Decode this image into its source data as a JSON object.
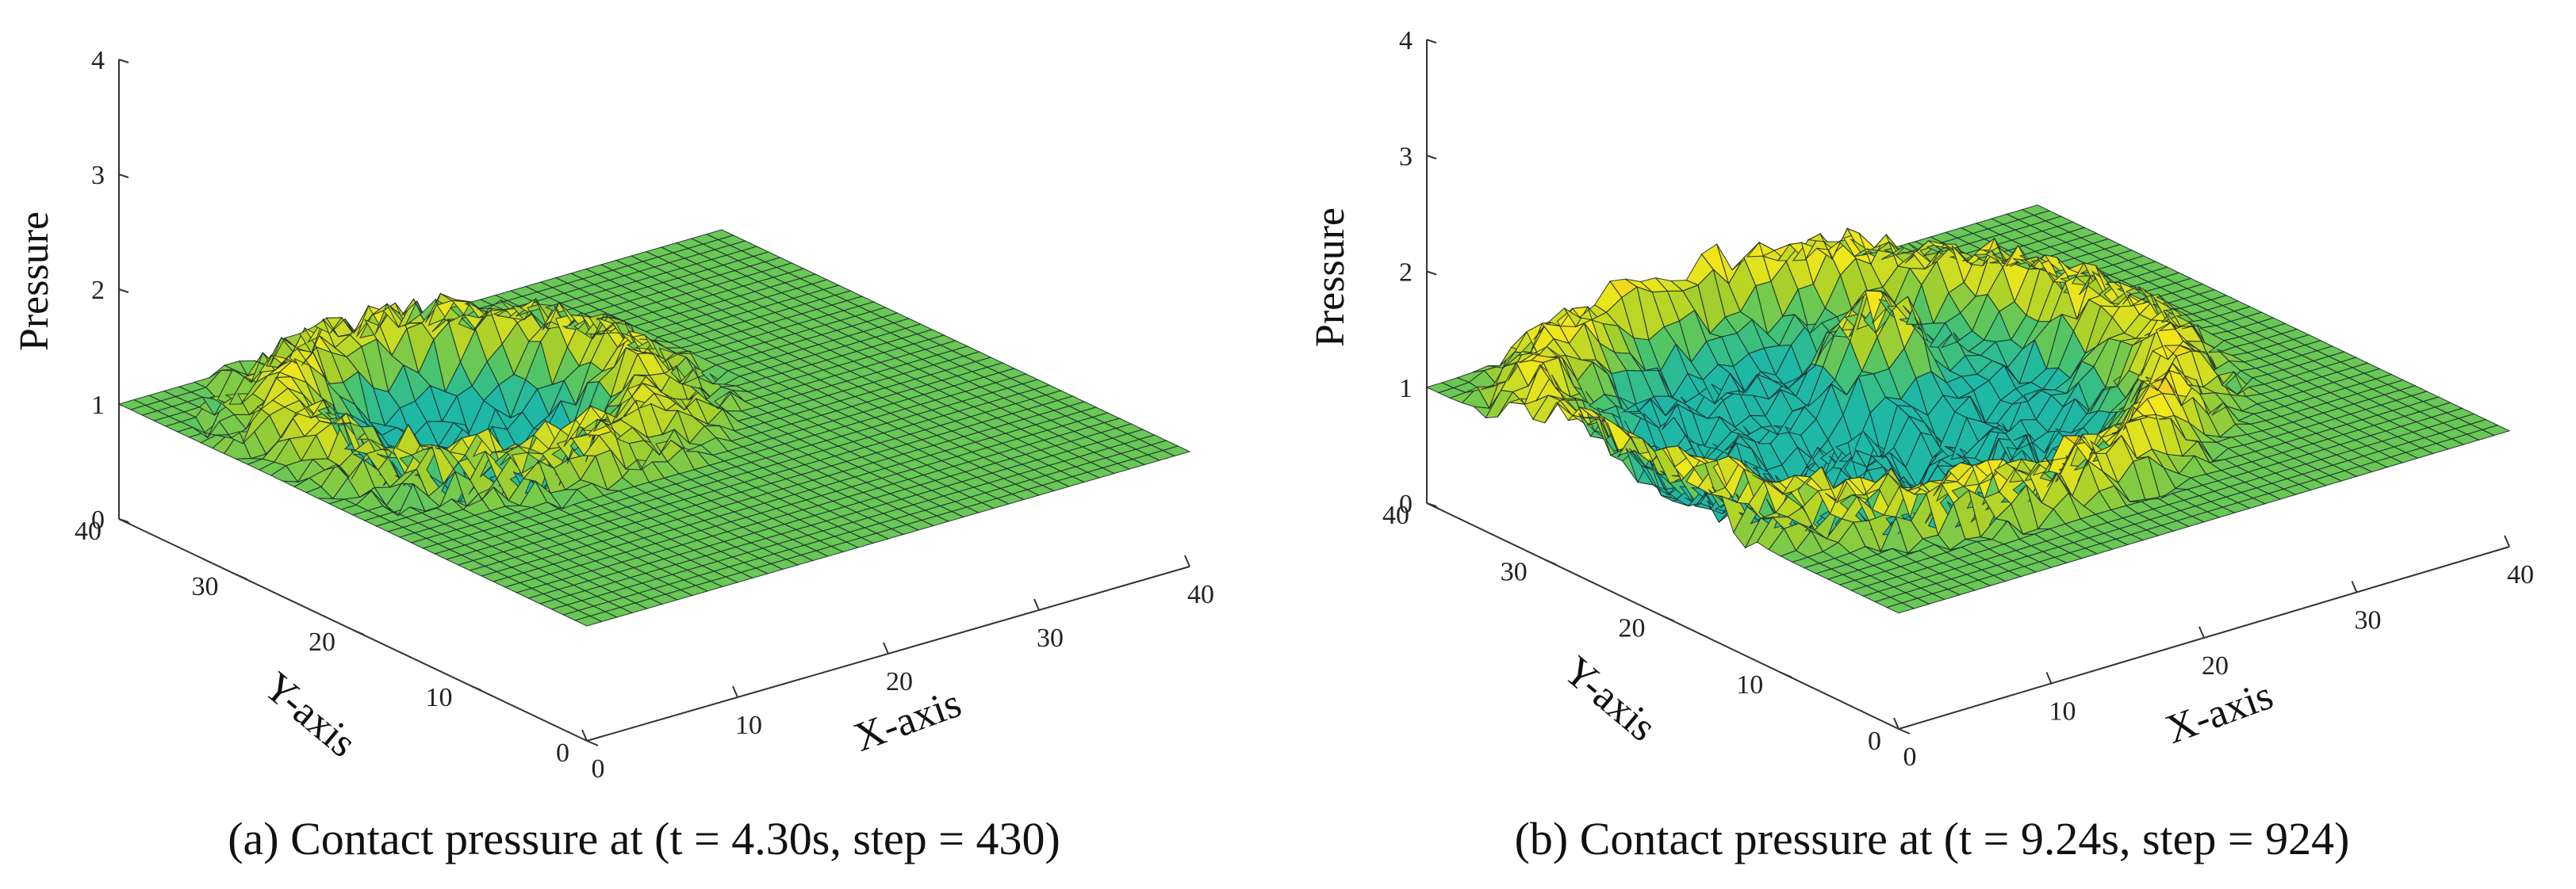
{
  "chart_data": [
    {
      "type": "surface",
      "caption": "(a) Contact pressure at (t = 4.30s, step = 430)",
      "xlabel": "X-axis",
      "ylabel": "Y-axis",
      "zlabel": "Pressure",
      "xlim": [
        0,
        40
      ],
      "ylim": [
        0,
        40
      ],
      "zlim": [
        0,
        4
      ],
      "x_ticks": [
        "0",
        "10",
        "20",
        "30",
        "40"
      ],
      "y_ticks": [
        "0",
        "10",
        "20",
        "30",
        "40"
      ],
      "z_ticks": [
        "0",
        "1",
        "2",
        "3",
        "4"
      ],
      "grid_size": 40,
      "base_pressure": 1.0,
      "features": [
        {
          "kind": "crater",
          "cx": 14,
          "cy": 28,
          "radius": 12,
          "depth": 0.55
        },
        {
          "kind": "rim",
          "cx": 14,
          "cy": 28,
          "radius": 9,
          "height": 0.5
        }
      ],
      "colormap": [
        "#1fb8a6",
        "#4cc46a",
        "#a8d02a",
        "#f2e81a",
        "#f0a32a"
      ]
    },
    {
      "type": "surface",
      "caption": "(b) Contact pressure at (t = 9.24s, step = 924)",
      "xlabel": "X-axis",
      "ylabel": "Y-axis",
      "zlabel": "Pressure",
      "xlim": [
        0,
        40
      ],
      "ylim": [
        0,
        40
      ],
      "zlim": [
        0,
        4
      ],
      "x_ticks": [
        "0",
        "10",
        "20",
        "30",
        "40"
      ],
      "y_ticks": [
        "0",
        "10",
        "20",
        "30",
        "40"
      ],
      "z_ticks": [
        "0",
        "1",
        "2",
        "3",
        "4"
      ],
      "grid_size": 40,
      "base_pressure": 1.0,
      "features": [
        {
          "kind": "crater",
          "cx": 16,
          "cy": 24,
          "radius": 18,
          "depth": 0.6
        },
        {
          "kind": "rim",
          "cx": 16,
          "cy": 24,
          "radius": 16,
          "height": 0.45
        },
        {
          "kind": "peak",
          "cx": 22,
          "cy": 30,
          "radius": 2.2,
          "height": 0.9
        },
        {
          "kind": "ripple",
          "cx": 16,
          "cy": 24,
          "amplitude": 0.18,
          "wavelength": 4
        }
      ],
      "colormap": [
        "#1fb8a6",
        "#4cc46a",
        "#a8d02a",
        "#f2e81a",
        "#f0a32a"
      ]
    }
  ]
}
